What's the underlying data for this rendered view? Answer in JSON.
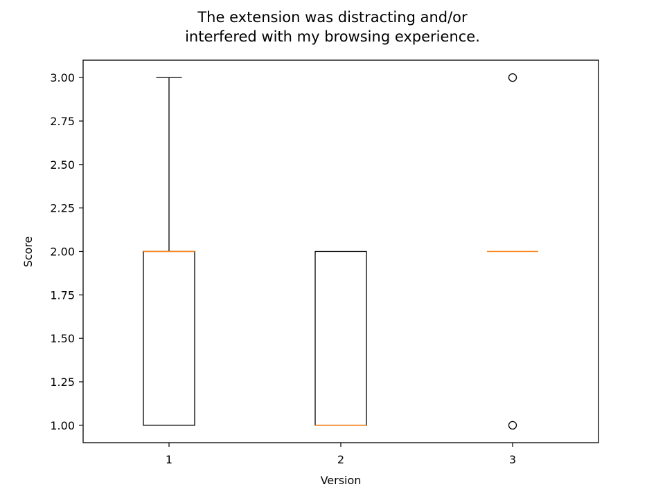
{
  "chart_data": {
    "type": "box",
    "title_lines": [
      "The extension was distracting and/or",
      "interfered with my browsing experience."
    ],
    "xlabel": "Version",
    "ylabel": "Score",
    "categories": [
      "1",
      "2",
      "3"
    ],
    "ylim": [
      0.9,
      3.1
    ],
    "xlim": [
      0.5,
      3.5
    ],
    "yticks": [
      "1.00",
      "1.25",
      "1.50",
      "1.75",
      "2.00",
      "2.25",
      "2.50",
      "2.75",
      "3.00"
    ],
    "boxes": [
      {
        "category": "1",
        "whisker_low": 1,
        "q1": 1,
        "median": 2,
        "q3": 2,
        "whisker_high": 3,
        "outliers": []
      },
      {
        "category": "2",
        "whisker_low": 1,
        "q1": 1,
        "median": 1,
        "q3": 2,
        "whisker_high": 2,
        "outliers": []
      },
      {
        "category": "3",
        "whisker_low": 2,
        "q1": 2,
        "median": 2,
        "q3": 2,
        "whisker_high": 2,
        "outliers": [
          1,
          3
        ]
      }
    ],
    "grid": false,
    "colors": {
      "box": "#000000",
      "median": "#ff7f0e",
      "outlier": "#000000"
    }
  }
}
